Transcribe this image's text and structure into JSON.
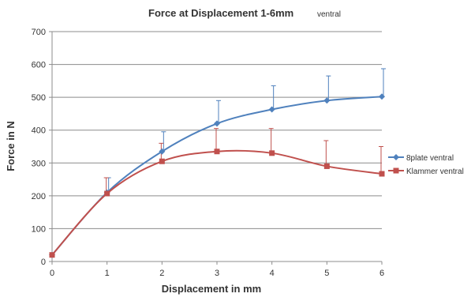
{
  "chart_data": {
    "type": "line",
    "title": "Force at Displacement 1-6mm",
    "subtitle": "ventral",
    "xlabel": "Displacement in mm",
    "ylabel": "Force in N",
    "xlim": [
      0,
      6
    ],
    "ylim": [
      0,
      700
    ],
    "xticks": [
      0,
      1,
      2,
      3,
      4,
      5,
      6
    ],
    "yticks": [
      0,
      100,
      200,
      300,
      400,
      500,
      600,
      700
    ],
    "grid": true,
    "legend_position": "right",
    "x": [
      0,
      1,
      2,
      3,
      4,
      5,
      6
    ],
    "series": [
      {
        "name": "8plate ventral",
        "color": "#4f81bd",
        "marker": "diamond",
        "values": [
          20,
          210,
          335,
          420,
          463,
          490,
          502
        ],
        "error_upper": [
          20,
          255,
          395,
          490,
          535,
          565,
          587
        ]
      },
      {
        "name": "Klammer ventral",
        "color": "#c0504d",
        "marker": "square",
        "values": [
          20,
          207,
          305,
          335,
          330,
          290,
          267
        ],
        "error_upper": [
          20,
          255,
          360,
          405,
          405,
          368,
          350
        ]
      }
    ]
  }
}
